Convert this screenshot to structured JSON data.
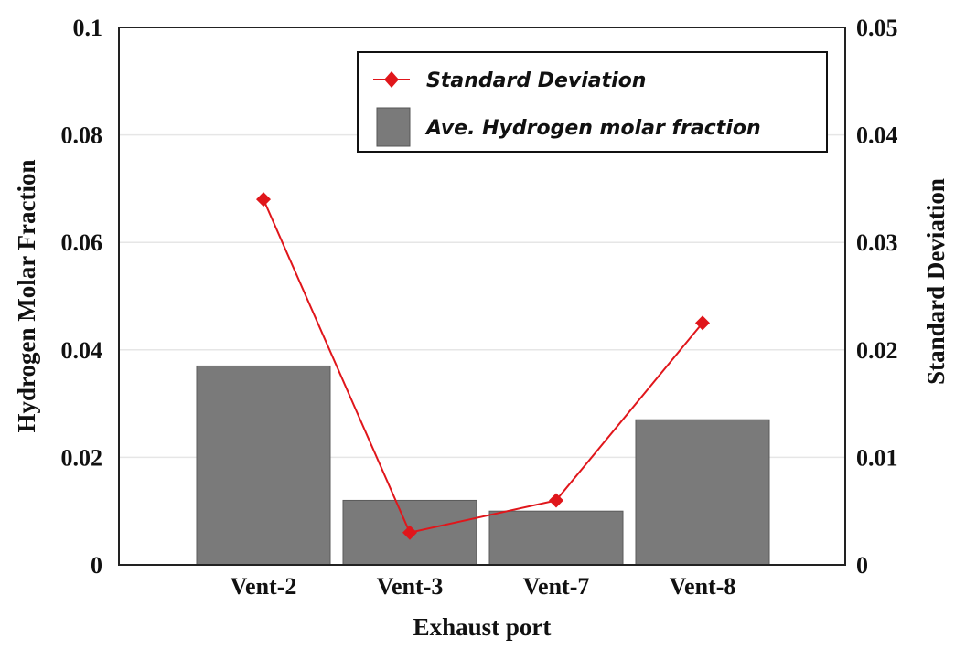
{
  "chart_data": {
    "type": "bar",
    "categories": [
      "Vent-2",
      "Vent-3",
      "Vent-7",
      "Vent-8"
    ],
    "xlabel": "Exhaust port",
    "ylabel": "Hydrogen Molar Fraction",
    "y2label": "Standard Deviation",
    "ylim": [
      0,
      0.1
    ],
    "y2lim": [
      0,
      0.05
    ],
    "yticks": [
      "0",
      "0.02",
      "0.04",
      "0.06",
      "0.08",
      "0.1"
    ],
    "y2ticks": [
      "0",
      "0.01",
      "0.02",
      "0.03",
      "0.04",
      "0.05"
    ],
    "grid": true,
    "legend_position": "top-right",
    "series": [
      {
        "name": "Ave. Hydrogen molar fraction",
        "type": "bar",
        "axis": "left",
        "color": "#7a7a7a",
        "values": [
          0.037,
          0.012,
          0.01,
          0.027
        ]
      },
      {
        "name": "Standard Deviation",
        "type": "line",
        "axis": "right",
        "color": "#e0161b",
        "marker": "diamond",
        "values": [
          0.034,
          0.003,
          0.006,
          0.0225
        ]
      }
    ]
  }
}
